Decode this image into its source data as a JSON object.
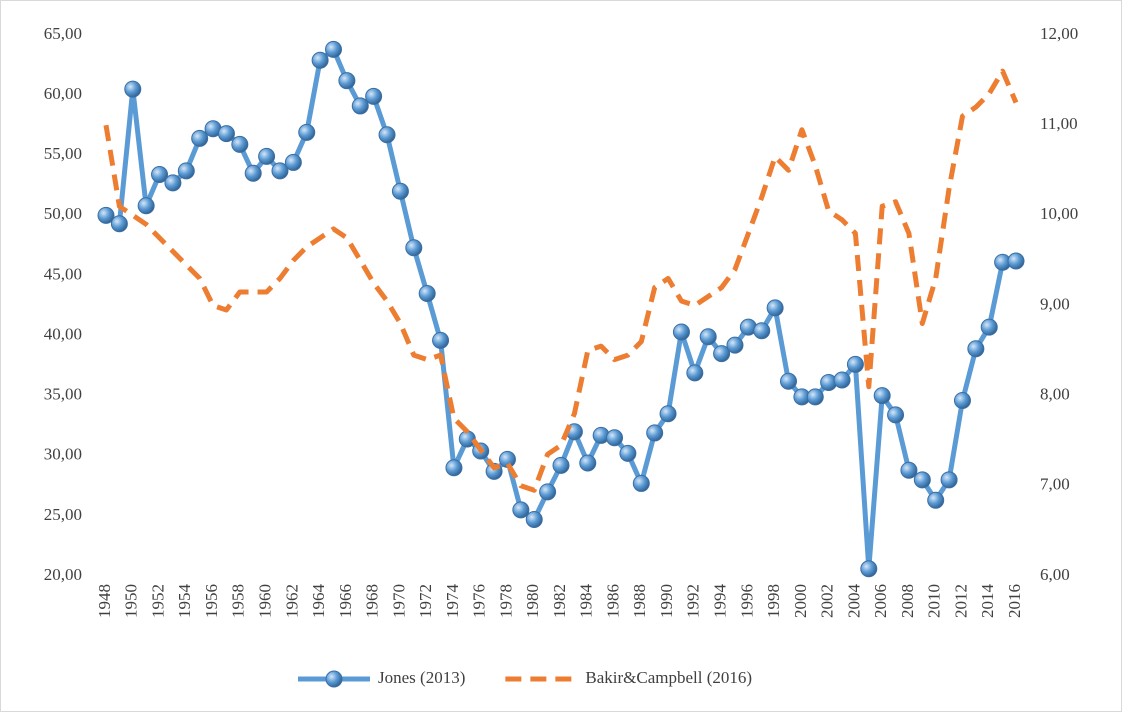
{
  "chart_data": {
    "type": "line",
    "categories": [
      "1948",
      null,
      "1950",
      null,
      "1952",
      null,
      "1954",
      null,
      "1956",
      null,
      "1958",
      null,
      "1960",
      null,
      "1962",
      null,
      "1964",
      null,
      "1966",
      null,
      "1968",
      null,
      "1970",
      null,
      "1972",
      null,
      "1974",
      null,
      "1976",
      null,
      "1978",
      null,
      "1980",
      null,
      "1982",
      null,
      "1984",
      null,
      "1986",
      null,
      "1988",
      null,
      "1990",
      null,
      "1992",
      null,
      "1994",
      null,
      "1996",
      null,
      "1998",
      null,
      "2000",
      null,
      "2002",
      null,
      "2004",
      null,
      "2006",
      null,
      "2008",
      null,
      "2010",
      null,
      "2012",
      null,
      "2014",
      null,
      "2016"
    ],
    "series": [
      {
        "name": "Jones (2013)",
        "color": "#5b9bd5",
        "markers": true,
        "values": [
          50.0,
          49.3,
          60.5,
          50.8,
          53.4,
          52.7,
          53.7,
          56.4,
          57.2,
          56.8,
          55.9,
          53.5,
          54.9,
          53.7,
          54.4,
          56.9,
          62.9,
          63.8,
          61.2,
          59.1,
          59.9,
          56.7,
          52.0,
          47.3,
          43.5,
          39.6,
          29.0,
          31.4,
          30.4,
          28.7,
          29.7,
          25.5,
          24.7,
          27.0,
          29.2,
          32.0,
          29.4,
          31.7,
          31.5,
          30.2,
          27.7,
          31.9,
          33.5,
          40.3,
          36.9,
          39.9,
          38.5,
          39.2,
          40.7,
          40.4,
          42.3,
          36.2,
          34.9,
          34.9,
          36.1,
          36.3,
          37.6,
          20.6,
          35.0,
          33.4,
          28.8,
          28.0,
          26.3,
          28.0,
          34.6,
          38.9,
          40.7,
          46.1,
          46.2
        ]
      },
      {
        "name": "Bakir&Campbell (2016)",
        "color": "#ed7d31",
        "dashed": true,
        "axis": "y2",
        "values": [
          11.0,
          10.1,
          10.0,
          9.9,
          9.75,
          9.6,
          9.45,
          9.3,
          9.0,
          8.95,
          9.15,
          9.15,
          9.15,
          9.3,
          9.5,
          9.65,
          9.75,
          9.85,
          9.75,
          9.5,
          9.25,
          9.05,
          8.8,
          8.45,
          8.4,
          8.45,
          7.75,
          7.6,
          7.4,
          7.2,
          7.25,
          7.0,
          6.95,
          7.35,
          7.45,
          7.8,
          8.5,
          8.55,
          8.4,
          8.45,
          8.6,
          9.2,
          9.3,
          9.05,
          9.0,
          9.1,
          9.2,
          9.4,
          9.8,
          10.2,
          10.65,
          10.5,
          10.95,
          10.55,
          10.05,
          9.95,
          9.8,
          8.1,
          10.1,
          10.15,
          9.8,
          8.8,
          9.3,
          10.3,
          11.1,
          11.2,
          11.35,
          11.6,
          11.25
        ]
      }
    ],
    "ylim": [
      20,
      65
    ],
    "yticks": [
      {
        "value": 20,
        "label": "20,00"
      },
      {
        "value": 25,
        "label": "25,00"
      },
      {
        "value": 30,
        "label": "30,00"
      },
      {
        "value": 35,
        "label": "35,00"
      },
      {
        "value": 40,
        "label": "40,00"
      },
      {
        "value": 45,
        "label": "45,00"
      },
      {
        "value": 50,
        "label": "50,00"
      },
      {
        "value": 55,
        "label": "55,00"
      },
      {
        "value": 60,
        "label": "60,00"
      },
      {
        "value": 65,
        "label": "65,00"
      }
    ],
    "y2lim": [
      6,
      12
    ],
    "y2ticks": [
      {
        "value": 6,
        "label": "6,00"
      },
      {
        "value": 7,
        "label": "7,00"
      },
      {
        "value": 8,
        "label": "8,00"
      },
      {
        "value": 9,
        "label": "9,00"
      },
      {
        "value": 10,
        "label": "10,00"
      },
      {
        "value": 11,
        "label": "11,00"
      },
      {
        "value": 12,
        "label": "12,00"
      }
    ],
    "legend": "bottom"
  }
}
